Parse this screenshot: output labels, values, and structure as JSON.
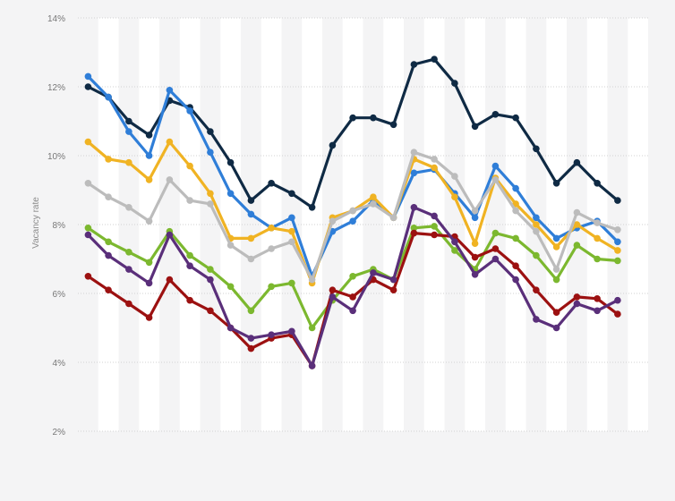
{
  "chart_data": {
    "type": "line",
    "title": "",
    "xlabel": "",
    "ylabel": "Vacancy rate",
    "y_tick_labels": [
      "2%",
      "4%",
      "6%",
      "8%",
      "10%",
      "12%",
      "14%"
    ],
    "ylim": [
      2,
      14
    ],
    "grid": true,
    "x_tick_labels_visible": false,
    "background_stripes": true,
    "n_points": 28,
    "series": [
      {
        "color": "#0f2a44",
        "values": [
          12.0,
          11.7,
          11.0,
          10.6,
          11.6,
          11.4,
          10.7,
          9.8,
          8.7,
          9.2,
          8.9,
          8.5,
          10.3,
          11.1,
          11.1,
          10.9,
          12.65,
          12.8,
          12.1,
          10.85,
          11.2,
          11.1,
          10.2,
          9.2,
          9.8,
          9.2,
          8.7,
          null
        ]
      },
      {
        "color": "#2f7ed8",
        "values": [
          12.3,
          11.7,
          10.7,
          10.0,
          11.9,
          11.3,
          10.1,
          8.9,
          8.3,
          7.9,
          8.2,
          6.5,
          7.8,
          8.1,
          8.7,
          8.2,
          9.5,
          9.6,
          8.9,
          8.2,
          9.7,
          9.05,
          8.2,
          7.6,
          7.9,
          8.1,
          7.5,
          null
        ]
      },
      {
        "color": "#f0b323",
        "values": [
          10.4,
          9.9,
          9.8,
          9.3,
          10.4,
          9.7,
          8.9,
          7.6,
          7.6,
          7.9,
          7.8,
          6.3,
          8.2,
          8.4,
          8.8,
          8.2,
          9.9,
          9.65,
          8.8,
          7.45,
          9.35,
          8.6,
          8.0,
          7.35,
          8.0,
          7.6,
          7.25,
          null
        ]
      },
      {
        "color": "#bcbcbc",
        "values": [
          9.2,
          8.8,
          8.5,
          8.1,
          9.3,
          8.7,
          8.6,
          7.4,
          7.0,
          7.3,
          7.5,
          6.4,
          8.1,
          8.4,
          8.6,
          8.2,
          10.1,
          9.9,
          9.4,
          8.4,
          9.3,
          8.4,
          7.8,
          6.7,
          8.35,
          8.05,
          7.85,
          null
        ]
      },
      {
        "color": "#7cb82f",
        "values": [
          7.9,
          7.5,
          7.2,
          6.9,
          7.8,
          7.1,
          6.7,
          6.2,
          5.5,
          6.2,
          6.3,
          5.0,
          5.8,
          6.5,
          6.7,
          6.4,
          7.9,
          7.95,
          7.25,
          6.7,
          7.75,
          7.6,
          7.1,
          6.4,
          7.4,
          7.0,
          6.95,
          null
        ]
      },
      {
        "color": "#9c1111",
        "values": [
          6.5,
          6.1,
          5.7,
          5.3,
          6.4,
          5.8,
          5.5,
          5.0,
          4.4,
          4.7,
          4.8,
          3.9,
          6.1,
          5.9,
          6.4,
          6.1,
          7.75,
          7.7,
          7.65,
          7.05,
          7.3,
          6.8,
          6.1,
          5.45,
          5.9,
          5.85,
          5.4,
          null
        ]
      },
      {
        "color": "#5a2f7a",
        "values": [
          7.7,
          7.1,
          6.7,
          6.3,
          7.7,
          6.8,
          6.4,
          5.0,
          4.7,
          4.8,
          4.9,
          3.9,
          5.9,
          5.5,
          6.6,
          6.4,
          8.5,
          8.25,
          7.5,
          6.55,
          7.0,
          6.4,
          5.25,
          5.0,
          5.7,
          5.5,
          5.8,
          null
        ]
      }
    ]
  }
}
